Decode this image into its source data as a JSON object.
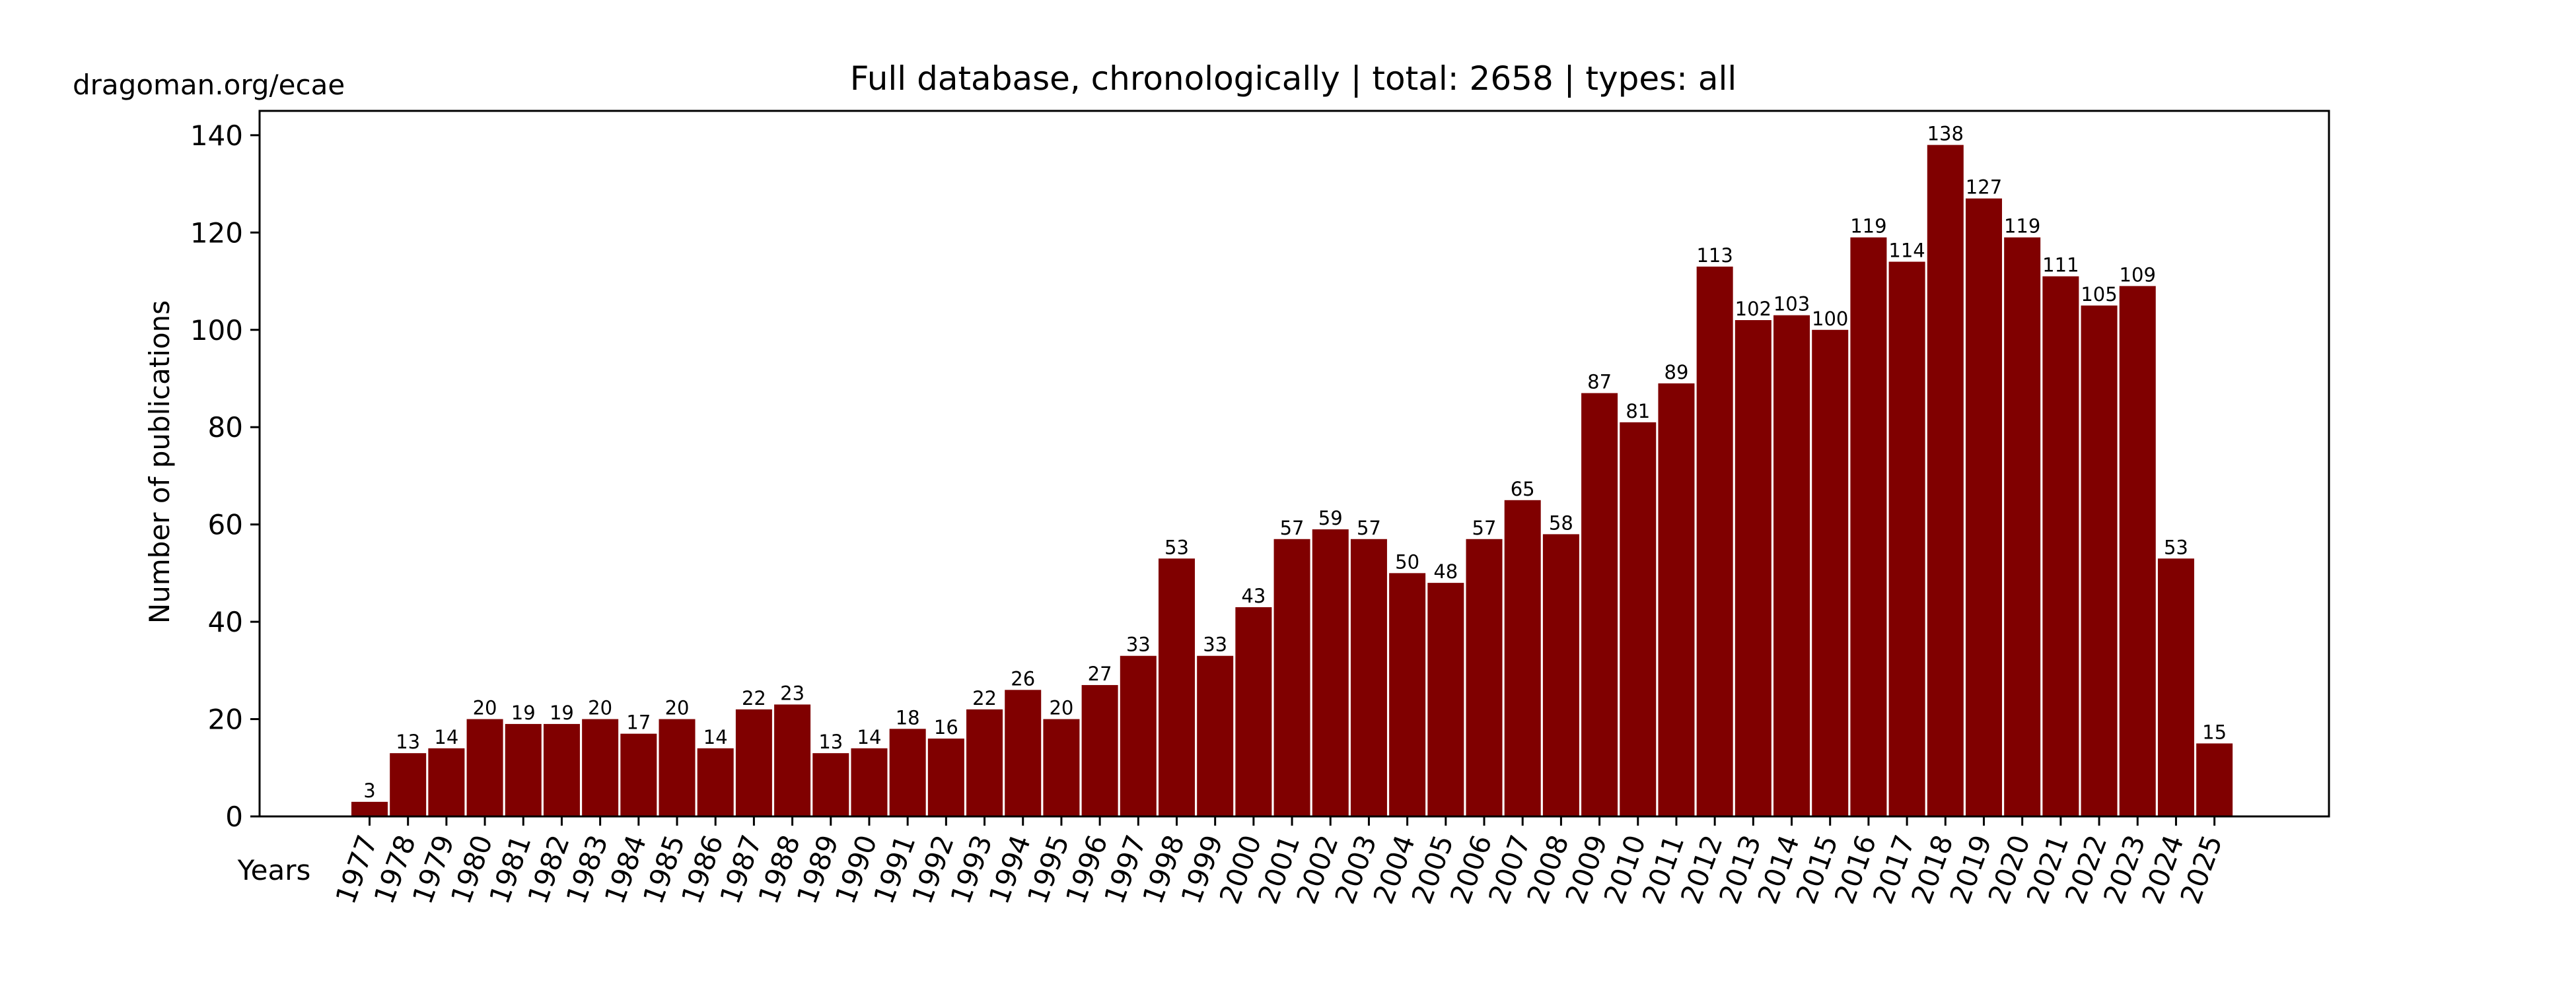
{
  "source_note": "dragoman.org/ecae",
  "chart_data": {
    "type": "bar",
    "title": "Full database, chronologically | total: 2658 | types: all",
    "xlabel": "Years",
    "ylabel": "Number of publications",
    "categories": [
      "1977",
      "1978",
      "1979",
      "1980",
      "1981",
      "1982",
      "1983",
      "1984",
      "1985",
      "1986",
      "1987",
      "1988",
      "1989",
      "1990",
      "1991",
      "1992",
      "1993",
      "1994",
      "1995",
      "1996",
      "1997",
      "1998",
      "1999",
      "2000",
      "2001",
      "2002",
      "2003",
      "2004",
      "2005",
      "2006",
      "2007",
      "2008",
      "2009",
      "2010",
      "2011",
      "2012",
      "2013",
      "2014",
      "2015",
      "2016",
      "2017",
      "2018",
      "2019",
      "2020",
      "2021",
      "2022",
      "2023",
      "2024",
      "2025"
    ],
    "values": [
      3,
      13,
      14,
      20,
      19,
      19,
      20,
      17,
      20,
      14,
      22,
      23,
      13,
      14,
      18,
      16,
      22,
      26,
      20,
      27,
      33,
      53,
      33,
      43,
      57,
      59,
      57,
      50,
      48,
      57,
      65,
      58,
      87,
      81,
      89,
      113,
      102,
      103,
      100,
      119,
      114,
      138,
      127,
      119,
      111,
      105,
      109,
      53,
      15
    ],
    "ylim": [
      0,
      145
    ],
    "yticks": [
      0,
      20,
      40,
      60,
      80,
      100,
      120,
      140
    ],
    "bar_color": "#800000",
    "grid": false,
    "data_labels": true
  }
}
